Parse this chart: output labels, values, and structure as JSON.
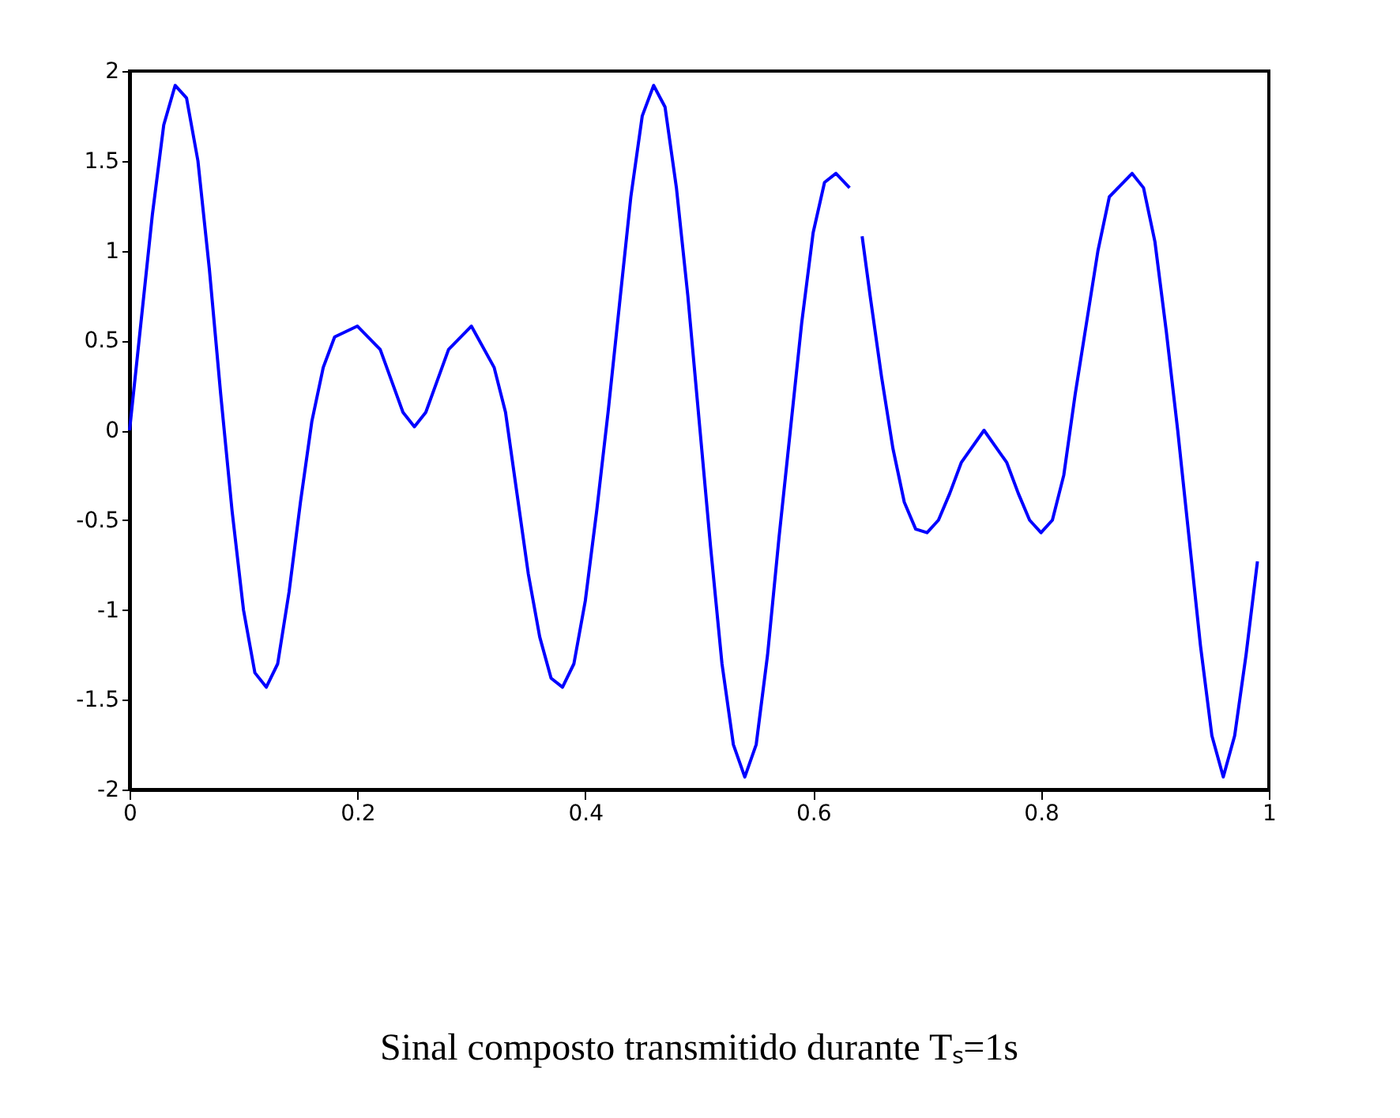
{
  "chart_data": {
    "type": "line",
    "x": [
      0,
      0.01,
      0.02,
      0.03,
      0.04,
      0.05,
      0.06,
      0.07,
      0.08,
      0.09,
      0.1,
      0.11,
      0.12,
      0.13,
      0.14,
      0.15,
      0.16,
      0.17,
      0.18,
      0.2,
      0.22,
      0.24,
      0.25,
      0.26,
      0.28,
      0.3,
      0.32,
      0.33,
      0.34,
      0.35,
      0.36,
      0.37,
      0.38,
      0.39,
      0.4,
      0.41,
      0.42,
      0.43,
      0.44,
      0.45,
      0.46,
      0.47,
      0.48,
      0.49,
      0.5,
      0.51,
      0.52,
      0.53,
      0.54,
      0.55,
      0.56,
      0.57,
      0.58,
      0.59,
      0.6,
      0.61,
      0.62,
      0.632,
      0.637,
      0.643,
      0.65,
      0.66,
      0.67,
      0.68,
      0.69,
      0.7,
      0.71,
      0.72,
      0.73,
      0.75,
      0.77,
      0.78,
      0.79,
      0.8,
      0.81,
      0.82,
      0.83,
      0.84,
      0.85,
      0.86,
      0.88,
      0.89,
      0.9,
      0.91,
      0.92,
      0.93,
      0.94,
      0.95,
      0.96,
      0.97,
      0.98,
      0.99
    ],
    "series": [
      {
        "color": "#0000ff",
        "values": [
          0,
          0.6,
          1.2,
          1.7,
          1.92,
          1.85,
          1.5,
          0.9,
          0.2,
          -0.45,
          -1.0,
          -1.35,
          -1.43,
          -1.3,
          -0.9,
          -0.4,
          0.05,
          0.35,
          0.52,
          0.58,
          0.45,
          0.1,
          0.02,
          0.1,
          0.45,
          0.58,
          0.35,
          0.1,
          -0.35,
          -0.8,
          -1.15,
          -1.38,
          -1.43,
          -1.3,
          -0.95,
          -0.45,
          0.1,
          0.7,
          1.3,
          1.75,
          1.92,
          1.8,
          1.35,
          0.75,
          0.05,
          -0.65,
          -1.3,
          -1.75,
          -1.93,
          -1.75,
          -1.25,
          -0.6,
          0.0,
          0.6,
          1.1,
          1.38,
          1.43,
          1.35,
          null,
          1.08,
          0.75,
          0.3,
          -0.1,
          -0.4,
          -0.55,
          -0.57,
          -0.5,
          -0.35,
          -0.18,
          0.0,
          -0.18,
          -0.35,
          -0.5,
          -0.57,
          -0.5,
          -0.25,
          0.2,
          0.6,
          1.0,
          1.3,
          1.43,
          1.35,
          1.05,
          0.55,
          0.0,
          -0.6,
          -1.2,
          -1.7,
          -1.93,
          -1.7,
          -1.25,
          -0.73
        ]
      }
    ],
    "xlim": [
      0,
      1
    ],
    "xticks": [
      0,
      0.2,
      0.4,
      0.6,
      0.8,
      1
    ],
    "ylim": [
      -2,
      2
    ],
    "yticks": [
      -2,
      -1.5,
      -1,
      -0.5,
      0,
      0.5,
      1,
      1.5,
      2
    ],
    "grid": false,
    "legend": false,
    "marker": "none",
    "line_style": "solid",
    "annotations": [
      "Sinal composto transmitido durante Tₛ=1s"
    ]
  }
}
